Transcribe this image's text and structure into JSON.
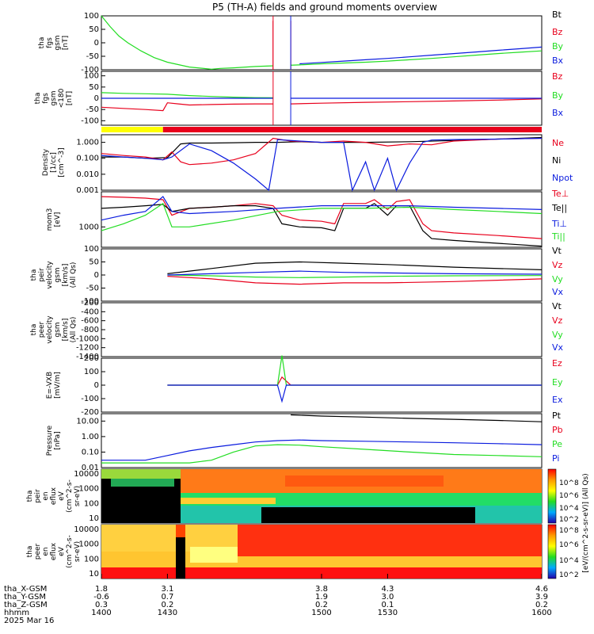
{
  "title": "P5 (TH-A) fields and ground moments overview",
  "colors": {
    "black": "#000000",
    "red": "#e8001c",
    "green": "#22dd22",
    "blue": "#0a1bde",
    "yellow": "#ffff00",
    "orange": "#ff7f00"
  },
  "chart_data": [
    {
      "id": "fgs_gsm",
      "type": "line",
      "ylabel": [
        "tha",
        "fgs",
        "gsm",
        "[nT]"
      ],
      "ylim": [
        -100,
        100
      ],
      "yticks": [
        "100",
        "50",
        "0",
        "-50",
        "-100"
      ],
      "legend": [
        "Bt",
        "Bz",
        "By",
        "Bx"
      ],
      "series": [
        {
          "name": "By",
          "color": "green",
          "x": [
            1400,
            1404,
            1408,
            1412,
            1418,
            1424,
            1430,
            1440,
            1450,
            1454,
            1460,
            1470,
            1480,
            1490,
            1500,
            1510,
            1520,
            1530,
            1540,
            1550,
            1560,
            1570,
            1580,
            1590,
            1600
          ],
          "y": [
            100,
            60,
            25,
            0,
            -30,
            -55,
            -72,
            -90,
            -98,
            -95,
            -93,
            -88,
            -85,
            -82,
            -78,
            -75,
            -72,
            -68,
            -63,
            -58,
            -52,
            -46,
            -40,
            -35,
            -30
          ]
        },
        {
          "name": "Bx",
          "color": "blue",
          "x": [
            1490,
            1500,
            1510,
            1520,
            1530,
            1540,
            1550,
            1560,
            1570,
            1580,
            1590,
            1600
          ],
          "y": [
            -78,
            -73,
            -68,
            -63,
            -58,
            -52,
            -46,
            -40,
            -34,
            -28,
            -22,
            -16
          ]
        },
        {
          "name": "Bz",
          "color": "red",
          "x": [
            1478,
            1478,
            1486,
            1486
          ],
          "y": [
            -100,
            80,
            80,
            -100
          ]
        }
      ]
    },
    {
      "id": "fgs_gsm_zoom",
      "type": "line",
      "ylabel": [
        "tha",
        "fgs",
        "gsm",
        "<180",
        "[nT]"
      ],
      "ylim": [
        -120,
        120
      ],
      "yticks": [
        "100",
        "50",
        "0",
        "-50",
        "-100"
      ],
      "legend": [
        "Bz",
        "By",
        "Bx"
      ],
      "series": [
        {
          "name": "By",
          "color": "green",
          "x": [
            1400,
            1410,
            1420,
            1430,
            1440,
            1450,
            1460,
            1470,
            1478
          ],
          "y": [
            25,
            22,
            20,
            18,
            12,
            8,
            5,
            3,
            2
          ]
        },
        {
          "name": "Bz",
          "color": "red",
          "x": [
            1400,
            1410,
            1420,
            1428,
            1430,
            1435,
            1440,
            1450,
            1460,
            1470,
            1478,
            1486,
            1500,
            1520,
            1540,
            1560,
            1580,
            1600
          ],
          "y": [
            -40,
            -45,
            -50,
            -55,
            -20,
            -25,
            -30,
            -28,
            -26,
            -25,
            -25,
            -25,
            -22,
            -18,
            -15,
            -12,
            -8,
            -3
          ]
        },
        {
          "name": "Bx",
          "color": "blue",
          "x": [
            1400,
            1420,
            1440,
            1460,
            1478,
            1486,
            1500,
            1550,
            1600
          ],
          "y": [
            0,
            0,
            0,
            0,
            0,
            0,
            0,
            0,
            0
          ]
        }
      ]
    },
    {
      "id": "density",
      "type": "line",
      "ylabel": [
        "Density",
        "[1/cc]",
        "[cm^-3]"
      ],
      "ylim_log": [
        0.001,
        3
      ],
      "yticks": [
        "1.000",
        "0.100",
        "0.010",
        "0.001"
      ],
      "legend": [
        "Ne",
        "Ni",
        "Npot"
      ],
      "series": [
        {
          "name": "Ni",
          "color": "black",
          "x": [
            1400,
            1410,
            1420,
            1430,
            1436,
            1440,
            1450,
            1460,
            1470,
            1480,
            1490,
            1500,
            1520,
            1540,
            1560,
            1580,
            1600
          ],
          "y": [
            0.12,
            0.12,
            0.1,
            0.11,
            0.8,
            0.9,
            0.9,
            0.95,
            1.0,
            1.0,
            1.1,
            1.0,
            1.0,
            1.1,
            1.3,
            1.6,
            2.0
          ]
        },
        {
          "name": "Ne",
          "color": "red",
          "x": [
            1400,
            1410,
            1420,
            1428,
            1432,
            1436,
            1440,
            1450,
            1460,
            1470,
            1478,
            1486,
            1500,
            1510,
            1520,
            1530,
            1540,
            1550,
            1560,
            1580,
            1600
          ],
          "y": [
            0.2,
            0.15,
            0.12,
            0.08,
            0.25,
            0.06,
            0.04,
            0.05,
            0.08,
            0.2,
            1.8,
            1.2,
            1.0,
            1.2,
            1.0,
            0.6,
            0.8,
            0.7,
            1.2,
            1.6,
            1.8
          ]
        },
        {
          "name": "Npot",
          "color": "blue",
          "x": [
            1400,
            1410,
            1420,
            1428,
            1432,
            1440,
            1450,
            1460,
            1470,
            1476,
            1480,
            1490,
            1500,
            1510,
            1514,
            1520,
            1524,
            1530,
            1534,
            1540,
            1546,
            1550,
            1560,
            1580,
            1600
          ],
          "y": [
            0.15,
            0.12,
            0.1,
            0.08,
            0.12,
            0.8,
            0.3,
            0.05,
            0.005,
            0.001,
            1.5,
            1.2,
            1.0,
            1.0,
            0.001,
            0.06,
            0.001,
            0.1,
            0.001,
            0.05,
            1.0,
            1.4,
            1.5,
            1.6,
            1.8
          ]
        }
      ]
    },
    {
      "id": "temperature",
      "type": "line",
      "ylabel": [
        "mom3",
        "[eV]"
      ],
      "ylim_log": [
        300,
        8000
      ],
      "yticks": [
        "1000"
      ],
      "legend": [
        "Te⊥",
        "Te||",
        "Ti⊥",
        "Ti||"
      ],
      "series": [
        {
          "name": "Te⊥",
          "color": "red",
          "x": [
            1400,
            1410,
            1420,
            1428,
            1432,
            1440,
            1450,
            1460,
            1470,
            1478,
            1482,
            1490,
            1500,
            1506,
            1510,
            1520,
            1524,
            1530,
            1534,
            1540,
            1546,
            1550,
            1560,
            1580,
            1600
          ],
          "y": [
            6000,
            5800,
            5500,
            5000,
            2000,
            3000,
            3200,
            3500,
            4000,
            3500,
            2000,
            1500,
            1400,
            1200,
            4000,
            4000,
            5000,
            2800,
            4500,
            5000,
            1200,
            800,
            700,
            600,
            500
          ]
        },
        {
          "name": "Te||",
          "color": "black",
          "x": [
            1400,
            1410,
            1420,
            1428,
            1432,
            1440,
            1450,
            1460,
            1470,
            1478,
            1482,
            1490,
            1500,
            1506,
            1510,
            1520,
            1524,
            1530,
            1534,
            1540,
            1546,
            1550,
            1560,
            1580,
            1600
          ],
          "y": [
            3000,
            3200,
            3500,
            3800,
            2500,
            3000,
            3200,
            3500,
            3500,
            3000,
            1200,
            1000,
            950,
            800,
            3000,
            3000,
            4000,
            2000,
            3500,
            3500,
            800,
            500,
            450,
            380,
            320
          ]
        },
        {
          "name": "Ti⊥",
          "color": "blue",
          "x": [
            1400,
            1410,
            1420,
            1428,
            1432,
            1440,
            1460,
            1480,
            1500,
            1520,
            1540,
            1560,
            1580,
            1600
          ],
          "y": [
            1500,
            2000,
            2500,
            6000,
            2500,
            2200,
            2500,
            3000,
            3500,
            3500,
            3500,
            3200,
            3000,
            2800
          ]
        },
        {
          "name": "Ti||",
          "color": "green",
          "x": [
            1400,
            1410,
            1420,
            1428,
            1432,
            1440,
            1460,
            1480,
            1500,
            1520,
            1540,
            1560,
            1580,
            1600
          ],
          "y": [
            800,
            1200,
            2000,
            4000,
            1000,
            1000,
            1500,
            2500,
            3000,
            3000,
            3200,
            2800,
            2500,
            2200
          ]
        }
      ]
    },
    {
      "id": "velocity",
      "type": "line",
      "ylabel": [
        "tha",
        "peir",
        "velocity",
        "gsm",
        "[km/s]",
        "(All Qs)"
      ],
      "ylim": [
        -100,
        100
      ],
      "yticks": [
        "100",
        "50",
        "0",
        "-50",
        "-100"
      ],
      "legend": [
        "Vt",
        "Vz",
        "Vy",
        "Vx"
      ],
      "x_start": 1430,
      "series": [
        {
          "name": "Vt",
          "color": "black",
          "x": [
            1430,
            1450,
            1470,
            1490,
            1510,
            1530,
            1560,
            1600
          ],
          "y": [
            5,
            25,
            45,
            50,
            45,
            40,
            30,
            20
          ]
        },
        {
          "name": "Vz",
          "color": "red",
          "x": [
            1430,
            1450,
            1470,
            1490,
            1510,
            1530,
            1560,
            1600
          ],
          "y": [
            -5,
            -15,
            -30,
            -35,
            -30,
            -30,
            -25,
            -15
          ]
        },
        {
          "name": "Vy",
          "color": "green",
          "x": [
            1430,
            1450,
            1470,
            1490,
            1510,
            1530,
            1560,
            1600
          ],
          "y": [
            0,
            -3,
            -8,
            -10,
            -8,
            -5,
            -3,
            -2
          ]
        },
        {
          "name": "Vx",
          "color": "blue",
          "x": [
            1430,
            1450,
            1470,
            1490,
            1510,
            1530,
            1560,
            1600
          ],
          "y": [
            0,
            5,
            10,
            15,
            10,
            8,
            5,
            3
          ]
        }
      ]
    },
    {
      "id": "peer_velocity",
      "type": "line",
      "ylabel": [
        "tha",
        "peer",
        "velocity",
        "gsm",
        "[km/s]",
        "(All Qs)"
      ],
      "ylim": [
        -1400,
        -200
      ],
      "yticks": [
        "-200",
        "-400",
        "-600",
        "-800",
        "-1000",
        "-1200",
        "-1400"
      ],
      "legend": [
        "Vt",
        "Vz",
        "Vy",
        "Vx"
      ],
      "series": []
    },
    {
      "id": "efield",
      "type": "line",
      "ylabel": [
        "E=-VXB",
        "[mV/m]"
      ],
      "ylim": [
        -200,
        200
      ],
      "yticks": [
        "200",
        "100",
        "0",
        "-100",
        "-200"
      ],
      "legend": [
        "Ez",
        "Ey",
        "Ex"
      ],
      "x_start": 1430,
      "series": [
        {
          "name": "Ez",
          "color": "red",
          "x": [
            1430,
            1480,
            1482,
            1486,
            1600
          ],
          "y": [
            0,
            0,
            60,
            0,
            0
          ]
        },
        {
          "name": "Ey",
          "color": "green",
          "x": [
            1430,
            1480,
            1482,
            1484,
            1600
          ],
          "y": [
            0,
            0,
            220,
            0,
            0
          ]
        },
        {
          "name": "Ex",
          "color": "blue",
          "x": [
            1430,
            1480,
            1482,
            1484,
            1600
          ],
          "y": [
            0,
            0,
            -120,
            0,
            0
          ]
        }
      ]
    },
    {
      "id": "pressure",
      "type": "line",
      "ylabel": [
        "Pressure",
        "[nPa]"
      ],
      "ylim_log": [
        0.01,
        30
      ],
      "yticks": [
        "10.00",
        "1.00",
        "0.10",
        "0.01"
      ],
      "legend": [
        "Pt",
        "Pb",
        "Pe",
        "Pi"
      ],
      "series": [
        {
          "name": "Pt",
          "color": "black",
          "x": [
            1486,
            1500,
            1520,
            1540,
            1560,
            1580,
            1600
          ],
          "y": [
            25,
            21,
            18,
            15,
            13,
            11,
            9
          ]
        },
        {
          "name": "Pi",
          "color": "blue",
          "x": [
            1400,
            1410,
            1420,
            1430,
            1440,
            1450,
            1460,
            1470,
            1480,
            1490,
            1500,
            1520,
            1540,
            1560,
            1580,
            1600
          ],
          "y": [
            0.03,
            0.03,
            0.03,
            0.06,
            0.12,
            0.2,
            0.3,
            0.45,
            0.55,
            0.6,
            0.55,
            0.5,
            0.45,
            0.4,
            0.35,
            0.3
          ]
        },
        {
          "name": "Pe",
          "color": "green",
          "x": [
            1400,
            1420,
            1440,
            1450,
            1460,
            1470,
            1480,
            1490,
            1500,
            1520,
            1540,
            1560,
            1580,
            1600
          ],
          "y": [
            0.02,
            0.02,
            0.02,
            0.03,
            0.1,
            0.25,
            0.3,
            0.28,
            0.22,
            0.15,
            0.1,
            0.07,
            0.06,
            0.05
          ]
        }
      ]
    },
    {
      "id": "peir_spectrogram",
      "type": "heatmap",
      "ylabel": [
        "tha",
        "peir",
        "en",
        "eflux",
        "eV",
        "(cm^2-s-",
        "sr-eV)"
      ],
      "yticks": [
        "10000",
        "1000",
        "100",
        "10"
      ]
    },
    {
      "id": "peer_spectrogram",
      "type": "heatmap",
      "ylabel": [
        "tha",
        "peer",
        "en",
        "eflux",
        "eV",
        "(cm^2-s-",
        "sr-eV)"
      ],
      "yticks": [
        "10000",
        "1000",
        "100",
        "10"
      ]
    }
  ],
  "colorbar": {
    "label": "[eV/(cm^2-s-sr-eV)] (All Qs)",
    "ticks_top": [
      "10^8",
      "10^6",
      "10^4",
      "10^2"
    ],
    "ticks_bottom": [
      "10^8",
      "10^6",
      "10^4",
      "10^2"
    ]
  },
  "x_axis": {
    "range": [
      1400,
      1600
    ],
    "rows": [
      {
        "label": "tha_X-GSM",
        "values": [
          "1.8",
          "3.1",
          "3.8",
          "4.3",
          "4.6"
        ]
      },
      {
        "label": "tha_Y-GSM",
        "values": [
          "-0.6",
          "0.7",
          "1.9",
          "3.0",
          "3.9"
        ]
      },
      {
        "label": "tha_Z-GSM",
        "values": [
          "0.3",
          "0.2",
          "0.2",
          "0.1",
          "0.2"
        ]
      },
      {
        "label": "hhmm",
        "values": [
          "1400",
          "1430",
          "1500",
          "1530",
          "1600"
        ]
      }
    ],
    "date": "2025 Mar 16"
  },
  "mode_bar": {
    "yellow_until": 1428
  }
}
